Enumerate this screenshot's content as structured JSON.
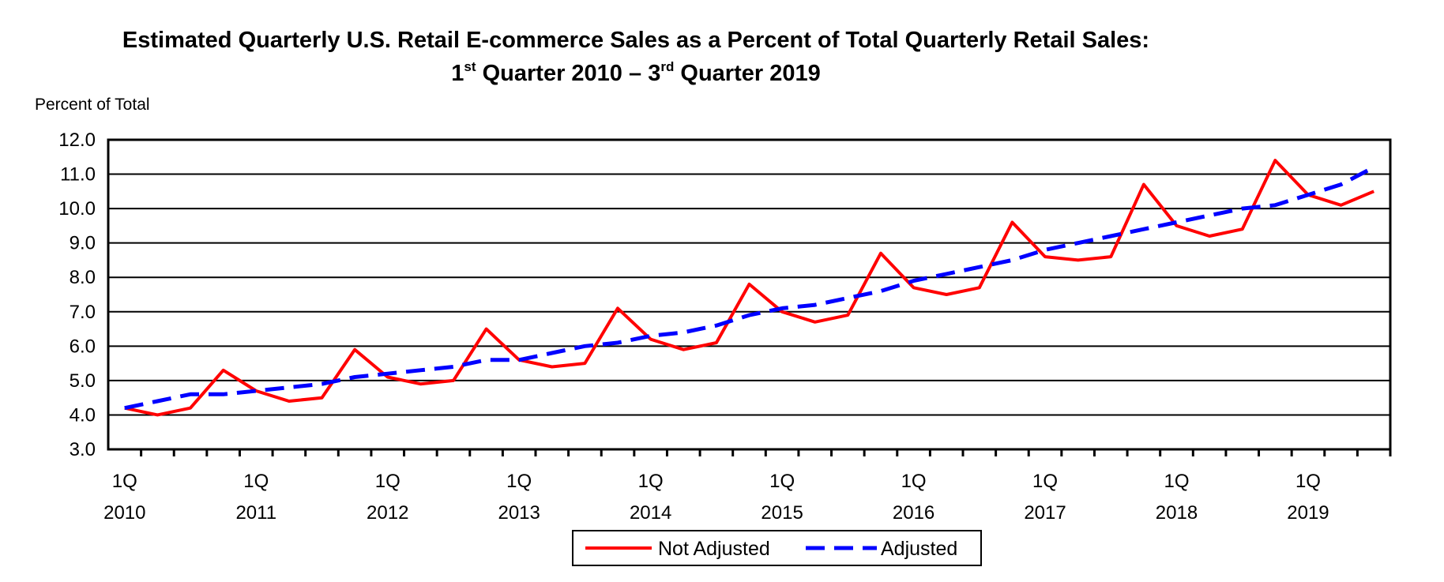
{
  "chart_data": {
    "type": "line",
    "title_line1": "Estimated Quarterly U.S. Retail E-commerce Sales as a Percent of Total Quarterly Retail Sales:",
    "title_line2": {
      "start_num": "1",
      "start_sup": "st",
      "start_text": " Quarter 2010 – ",
      "end_num": "3",
      "end_sup": "rd",
      "end_text": " Quarter 2019"
    },
    "ylabel": "Percent of Total",
    "xlabel": "",
    "ylim": [
      3.0,
      12.0
    ],
    "yticks": [
      "3.0",
      "4.0",
      "5.0",
      "6.0",
      "7.0",
      "8.0",
      "9.0",
      "10.0",
      "11.0",
      "12.0"
    ],
    "quarter_label": "1Q",
    "years": [
      "2010",
      "2011",
      "2012",
      "2013",
      "2014",
      "2015",
      "2016",
      "2017",
      "2018",
      "2019"
    ],
    "grid": true,
    "legend_position": "bottom-center",
    "series": [
      {
        "name": "Not Adjusted",
        "color": "#ff0000",
        "style": "solid",
        "values": [
          4.2,
          4.0,
          4.2,
          5.3,
          4.7,
          4.4,
          4.5,
          5.9,
          5.1,
          4.9,
          5.0,
          6.5,
          5.6,
          5.4,
          5.5,
          7.1,
          6.2,
          5.9,
          6.1,
          7.8,
          7.0,
          6.7,
          6.9,
          8.7,
          7.7,
          7.5,
          7.7,
          9.6,
          8.6,
          8.5,
          8.6,
          10.7,
          9.5,
          9.2,
          9.4,
          11.4,
          10.4,
          10.1,
          10.5
        ]
      },
      {
        "name": "Adjusted",
        "color": "#0000ff",
        "style": "dashed",
        "values": [
          4.2,
          4.4,
          4.6,
          4.6,
          4.7,
          4.8,
          4.9,
          5.1,
          5.2,
          5.3,
          5.4,
          5.6,
          5.6,
          5.8,
          6.0,
          6.1,
          6.3,
          6.4,
          6.6,
          6.9,
          7.1,
          7.2,
          7.4,
          7.6,
          7.9,
          8.1,
          8.3,
          8.5,
          8.8,
          9.0,
          9.2,
          9.4,
          9.6,
          9.8,
          10.0,
          10.1,
          10.4,
          10.7,
          11.2
        ]
      }
    ]
  }
}
